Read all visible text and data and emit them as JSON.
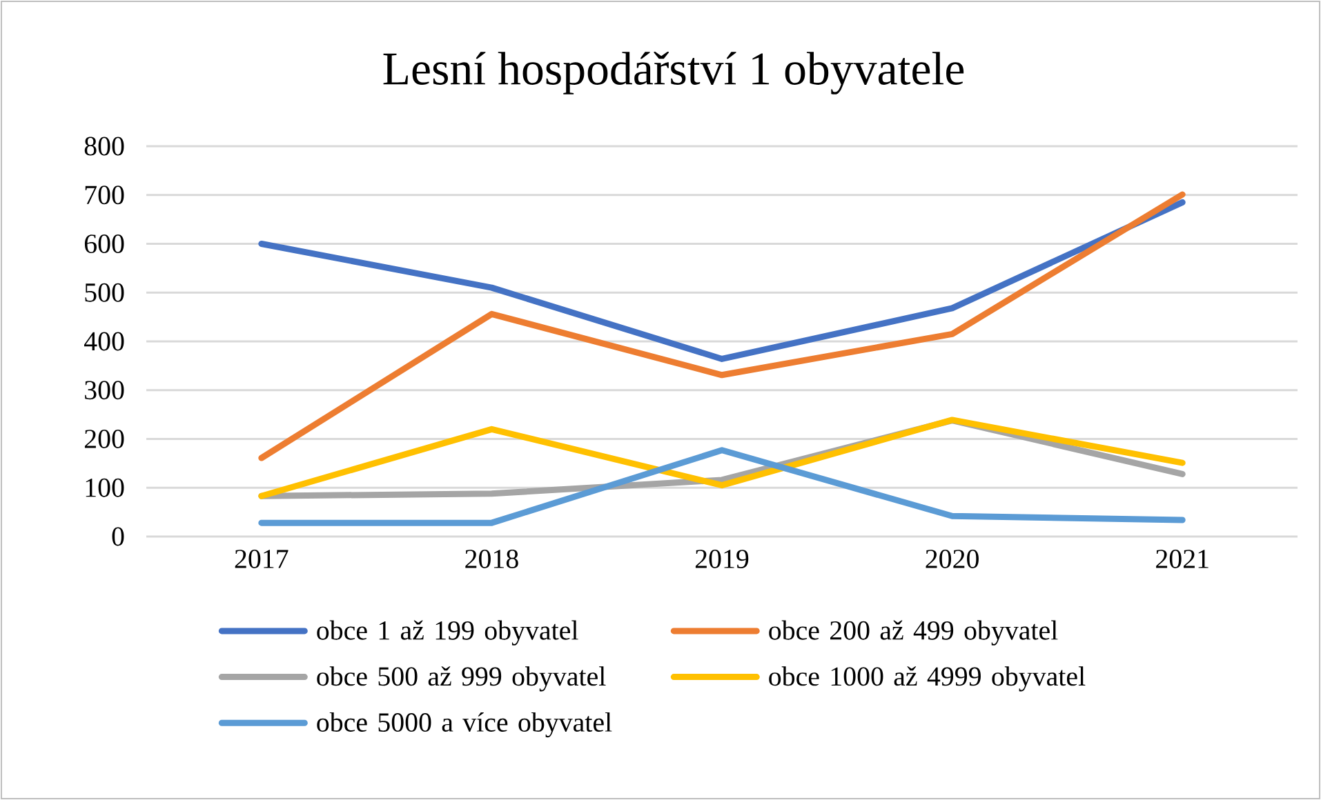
{
  "chart_data": {
    "type": "line",
    "title": "Lesní hospodářství 1 obyvatele",
    "categories": [
      "2017",
      "2018",
      "2019",
      "2020",
      "2021"
    ],
    "series": [
      {
        "name": "obce 1 až 199 obyvatel",
        "color": "#4472c4",
        "values": [
          600,
          510,
          364,
          468,
          685
        ]
      },
      {
        "name": "obce 200 až 499 obyvatel",
        "color": "#ed7d31",
        "values": [
          161,
          456,
          331,
          415,
          701
        ]
      },
      {
        "name": "obce 500 až 999 obyvatel",
        "color": "#a5a5a5",
        "values": [
          83,
          88,
          116,
          238,
          128
        ]
      },
      {
        "name": "obce 1000 až 4999 obyvatel",
        "color": "#ffc000",
        "values": [
          83,
          220,
          105,
          239,
          151
        ]
      },
      {
        "name": "obce 5000 a více obyvatel",
        "color": "#5b9bd5",
        "values": [
          28,
          28,
          177,
          42,
          34
        ]
      }
    ],
    "ylim": [
      0,
      800
    ],
    "yticks": [
      0,
      100,
      200,
      300,
      400,
      500,
      600,
      700,
      800
    ],
    "grid": "y",
    "legend": "bottom",
    "marker": "none",
    "line_style": "solid"
  }
}
